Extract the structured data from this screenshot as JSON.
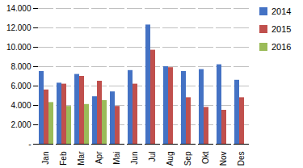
{
  "chart_data": {
    "type": "bar",
    "categories": [
      "Jan",
      "Feb",
      "Mar",
      "Apr",
      "Mai",
      "Jun",
      "Jul",
      "Aug",
      "Sep",
      "Okt",
      "Nov",
      "Des"
    ],
    "series": [
      {
        "name": "2014",
        "color": "#4472C4",
        "values": [
          7500,
          6300,
          7200,
          4900,
          5400,
          7600,
          12300,
          8000,
          7500,
          7700,
          8200,
          6600
        ]
      },
      {
        "name": "2015",
        "color": "#C0504D",
        "values": [
          5600,
          6200,
          7000,
          6500,
          3900,
          6200,
          9700,
          7900,
          4800,
          3800,
          3500,
          4800
        ]
      },
      {
        "name": "2016",
        "color": "#9BBB59",
        "values": [
          4300,
          3900,
          4100,
          4500,
          null,
          null,
          null,
          null,
          null,
          null,
          null,
          null
        ]
      }
    ],
    "ylim": [
      0,
      14000
    ],
    "yticks": [
      {
        "value": 0,
        "label": "-"
      },
      {
        "value": 2000,
        "label": "2.000"
      },
      {
        "value": 4000,
        "label": "4.000"
      },
      {
        "value": 6000,
        "label": "6.000"
      },
      {
        "value": 8000,
        "label": "8.000"
      },
      {
        "value": 10000,
        "label": "10.000"
      },
      {
        "value": 12000,
        "label": "12.000"
      },
      {
        "value": 14000,
        "label": "14.000"
      }
    ],
    "grid": true,
    "legend": "right"
  }
}
